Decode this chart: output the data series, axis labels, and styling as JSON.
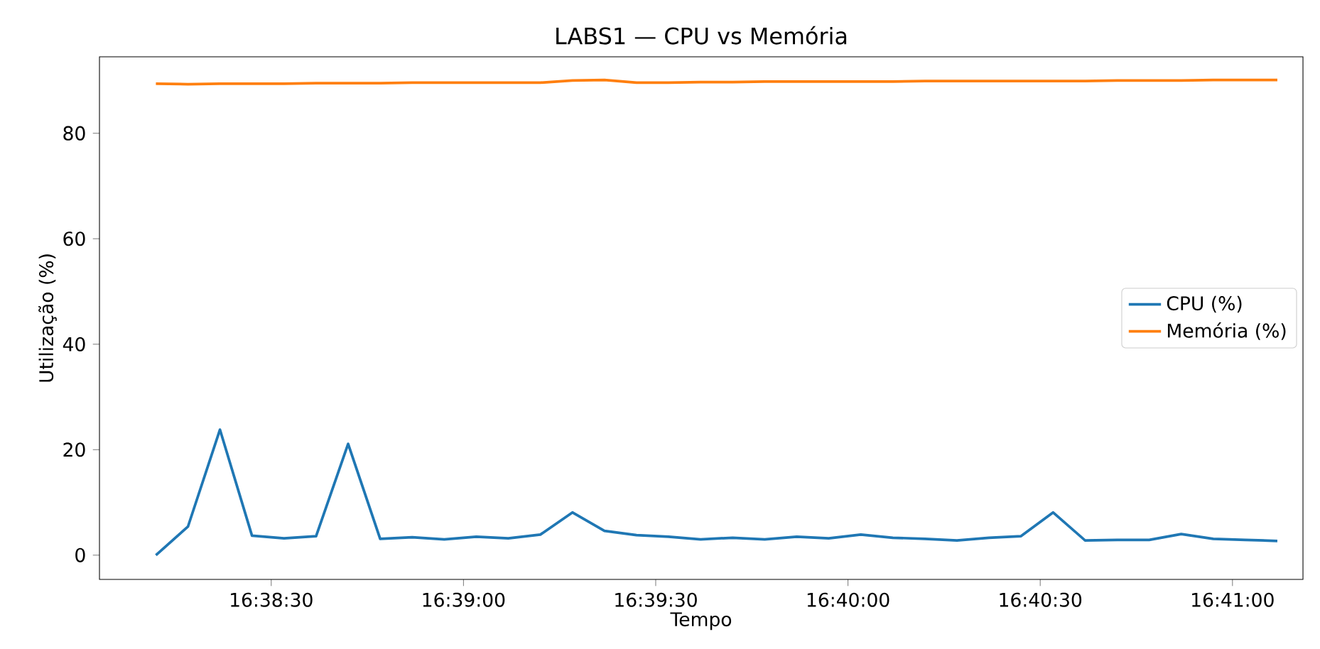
{
  "chart_data": {
    "type": "line",
    "title": "LABS1 — CPU vs Memória",
    "xlabel": "Tempo",
    "ylabel": "Utilização (%)",
    "x": [
      16.636667,
      16.638056,
      16.639444,
      16.640833,
      16.642222,
      16.643611,
      16.645,
      16.646389,
      16.647778,
      16.649167,
      16.650556,
      16.651944,
      16.653333,
      16.654722,
      16.656111,
      16.6575,
      16.658889,
      16.660278,
      16.661667,
      16.663056,
      16.664444,
      16.665833,
      16.667222,
      16.668611,
      16.67,
      16.671389,
      16.672778,
      16.674167,
      16.675556,
      16.676944,
      16.678333,
      16.679722,
      16.681111,
      16.6825,
      16.683889,
      16.685278
    ],
    "series": [
      {
        "name": "CPU (%)",
        "color": "#1f77b4",
        "values": [
          0,
          5.4,
          23.8,
          3.7,
          3.2,
          3.6,
          21.1,
          3.1,
          3.4,
          3.0,
          3.5,
          3.2,
          3.9,
          8.1,
          4.6,
          3.8,
          3.5,
          3.0,
          3.3,
          3.0,
          3.5,
          3.2,
          3.9,
          3.3,
          3.1,
          2.8,
          3.3,
          3.6,
          8.1,
          2.8,
          2.9,
          2.9,
          4.0,
          3.1,
          2.9,
          2.7
        ]
      },
      {
        "name": "Memória (%)",
        "color": "#ff7f0e",
        "values": [
          89.4,
          89.3,
          89.4,
          89.4,
          89.4,
          89.5,
          89.5,
          89.5,
          89.6,
          89.6,
          89.6,
          89.6,
          89.6,
          90.0,
          90.1,
          89.6,
          89.6,
          89.7,
          89.7,
          89.8,
          89.8,
          89.8,
          89.8,
          89.8,
          89.9,
          89.9,
          89.9,
          89.9,
          89.9,
          89.9,
          90.0,
          90.0,
          90.0,
          90.1,
          90.1,
          90.1
        ]
      }
    ],
    "xlim": [
      16.634222,
      16.686389
    ],
    "xticks": [
      {
        "value": 16.641667,
        "label": "16:38:30"
      },
      {
        "value": 16.65,
        "label": "16:39:00"
      },
      {
        "value": 16.658333,
        "label": "16:39:30"
      },
      {
        "value": 16.666667,
        "label": "16:40:00"
      },
      {
        "value": 16.675,
        "label": "16:40:30"
      },
      {
        "value": 16.683333,
        "label": "16:41:00"
      }
    ],
    "ylim": [
      -4.6,
      94.5
    ],
    "yticks": [
      0,
      20,
      40,
      60,
      80
    ],
    "legend": "right",
    "grid": false,
    "line_style": "solid",
    "marker": "none"
  }
}
